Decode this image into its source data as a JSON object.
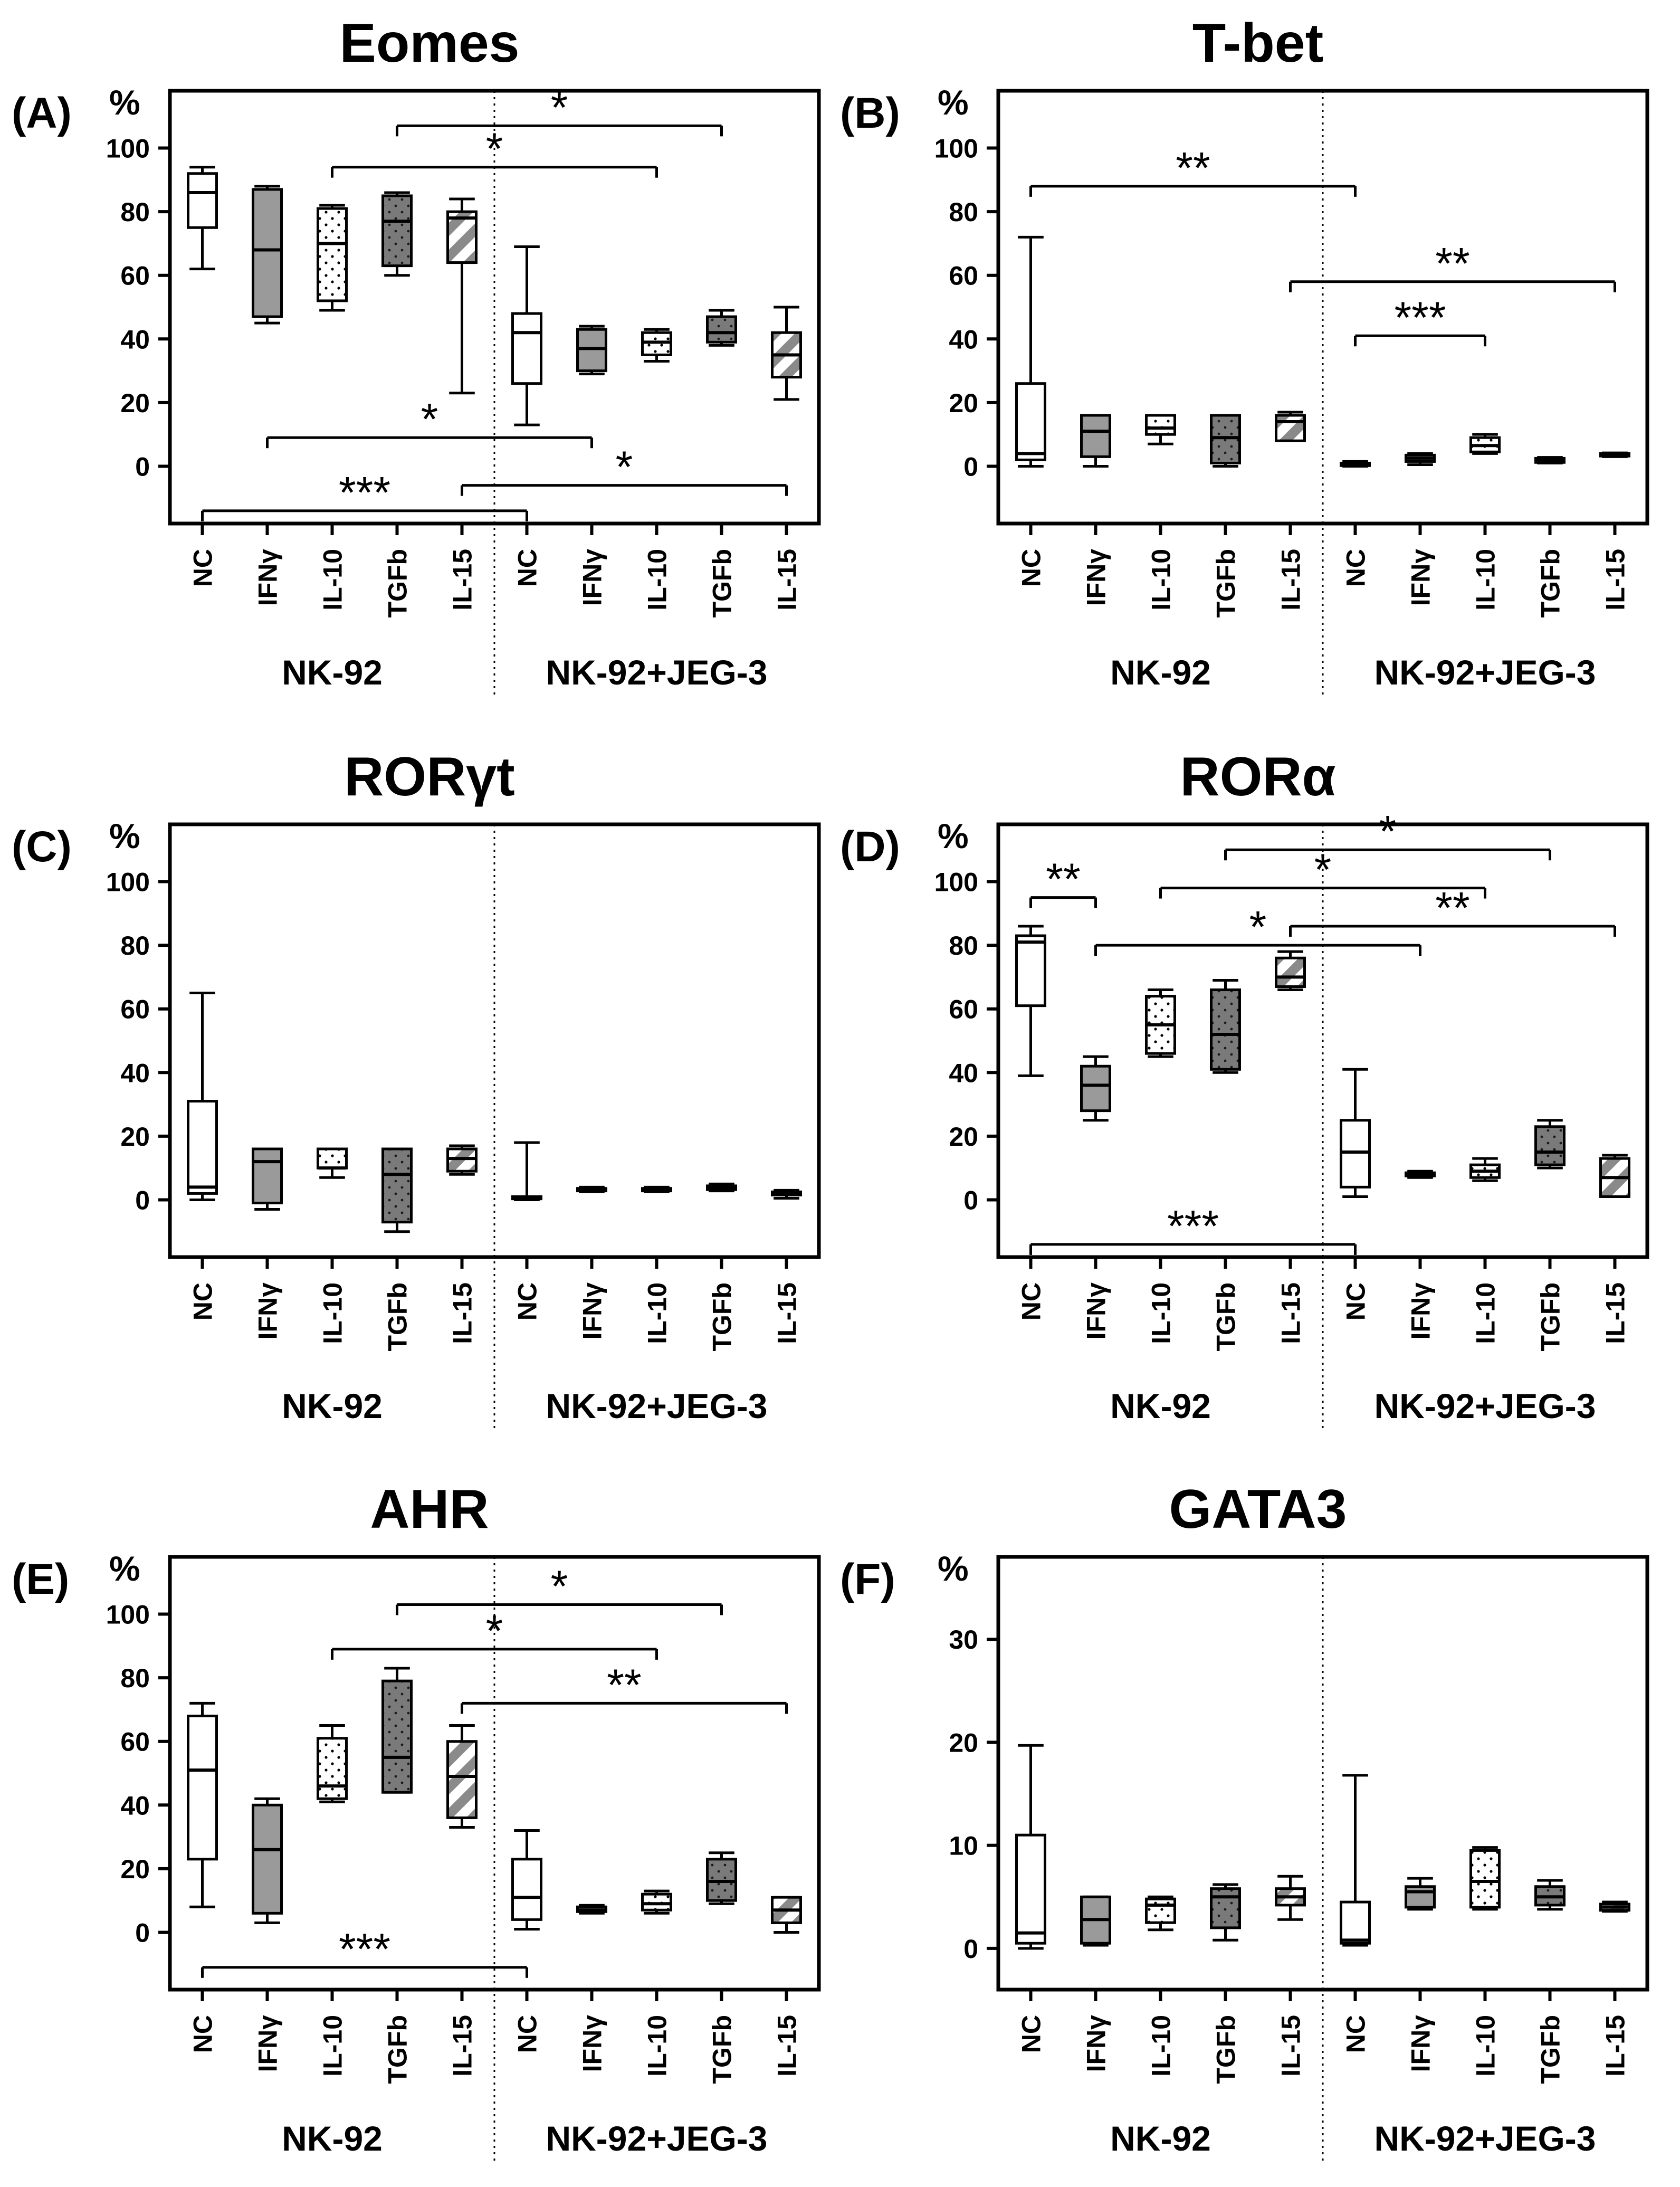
{
  "figure_letters": [
    "(A)",
    "(B)",
    "(C)",
    "(D)",
    "(E)",
    "(F)"
  ],
  "chart_data": [
    {
      "type": "box",
      "title": "Eomes",
      "ylabel": "%",
      "ylim": [
        -18,
        118
      ],
      "yticks": [
        0,
        20,
        40,
        60,
        80,
        100
      ],
      "categories": [
        "NC",
        "IFNγ",
        "IL-10",
        "TGFb",
        "IL-15",
        "NC",
        "IFNγ",
        "IL-10",
        "TGFb",
        "IL-15"
      ],
      "groups": [
        "NK-92",
        "NK-92+JEG-3"
      ],
      "series": [
        {
          "name": "NK-92 NC",
          "min": 62,
          "q1": 75,
          "median": 86,
          "q3": 92,
          "max": 94
        },
        {
          "name": "NK-92 IFNγ",
          "min": 45,
          "q1": 47,
          "median": 68,
          "q3": 87,
          "max": 88
        },
        {
          "name": "NK-92 IL-10",
          "min": 49,
          "q1": 52,
          "median": 70,
          "q3": 81,
          "max": 82
        },
        {
          "name": "NK-92 TGFb",
          "min": 60,
          "q1": 63,
          "median": 77,
          "q3": 85,
          "max": 86
        },
        {
          "name": "NK-92 IL-15",
          "min": 23,
          "q1": 64,
          "median": 78,
          "q3": 80,
          "max": 84
        },
        {
          "name": "NK-92+JEG-3 NC",
          "min": 13,
          "q1": 26,
          "median": 42,
          "q3": 48,
          "max": 69
        },
        {
          "name": "NK-92+JEG-3 IFNγ",
          "min": 29,
          "q1": 30,
          "median": 37,
          "q3": 43,
          "max": 44
        },
        {
          "name": "NK-92+JEG-3 IL-10",
          "min": 33,
          "q1": 35,
          "median": 39,
          "q3": 42,
          "max": 43
        },
        {
          "name": "NK-92+JEG-3 TGFb",
          "min": 38,
          "q1": 39,
          "median": 42,
          "q3": 47,
          "max": 49
        },
        {
          "name": "NK-92+JEG-3 IL-15",
          "min": 21,
          "q1": 28,
          "median": 35,
          "q3": 42,
          "max": 50
        }
      ],
      "comparisons": [
        {
          "from": 3,
          "to": 8,
          "y": 107,
          "label": "*"
        },
        {
          "from": 2,
          "to": 7,
          "y": 94,
          "label": "*"
        },
        {
          "from": 1,
          "to": 6,
          "y": 9,
          "label": "*"
        },
        {
          "from": 4,
          "to": 9,
          "y": -6,
          "label": "*"
        },
        {
          "from": 0,
          "to": 5,
          "y": -14,
          "label": "***"
        }
      ]
    },
    {
      "type": "box",
      "title": "T-bet",
      "ylabel": "%",
      "ylim": [
        -18,
        118
      ],
      "yticks": [
        0,
        20,
        40,
        60,
        80,
        100
      ],
      "categories": [
        "NC",
        "IFNγ",
        "IL-10",
        "TGFb",
        "IL-15",
        "NC",
        "IFNγ",
        "IL-10",
        "TGFb",
        "IL-15"
      ],
      "groups": [
        "NK-92",
        "NK-92+JEG-3"
      ],
      "series": [
        {
          "name": "NK-92 NC",
          "min": 0,
          "q1": 2,
          "median": 4,
          "q3": 26,
          "max": 72
        },
        {
          "name": "NK-92 IFNγ",
          "min": 0,
          "q1": 3,
          "median": 11,
          "q3": 16,
          "max": 16
        },
        {
          "name": "NK-92 IL-10",
          "min": 7,
          "q1": 10,
          "median": 12,
          "q3": 16,
          "max": 16
        },
        {
          "name": "NK-92 TGFb",
          "min": 0,
          "q1": 1,
          "median": 9,
          "q3": 16,
          "max": 16
        },
        {
          "name": "NK-92 IL-15",
          "min": 8,
          "q1": 8,
          "median": 14,
          "q3": 16,
          "max": 17
        },
        {
          "name": "NK-92+JEG-3 NC",
          "min": 0,
          "q1": 0.2,
          "median": 0.5,
          "q3": 1,
          "max": 1.5
        },
        {
          "name": "NK-92+JEG-3 IFNγ",
          "min": 0.5,
          "q1": 1.5,
          "median": 2.5,
          "q3": 3.5,
          "max": 4
        },
        {
          "name": "NK-92+JEG-3 IL-10",
          "min": 4,
          "q1": 4.5,
          "median": 6.5,
          "q3": 9,
          "max": 10
        },
        {
          "name": "NK-92+JEG-3 TGFb",
          "min": 1,
          "q1": 1.2,
          "median": 1.8,
          "q3": 2.5,
          "max": 2.8
        },
        {
          "name": "NK-92+JEG-3 IL-15",
          "min": 3,
          "q1": 3.2,
          "median": 3.6,
          "q3": 4,
          "max": 4.2
        }
      ],
      "comparisons": [
        {
          "from": 0,
          "to": 5,
          "y": 88,
          "label": "**"
        },
        {
          "from": 4,
          "to": 9,
          "y": 58,
          "label": "**"
        },
        {
          "from": 5,
          "to": 7,
          "y": 41,
          "label": "***"
        }
      ]
    },
    {
      "type": "box",
      "title": "RORγt",
      "ylabel": "%",
      "ylim": [
        -18,
        118
      ],
      "yticks": [
        0,
        20,
        40,
        60,
        80,
        100
      ],
      "categories": [
        "NC",
        "IFNγ",
        "IL-10",
        "TGFb",
        "IL-15",
        "NC",
        "IFNγ",
        "IL-10",
        "TGFb",
        "IL-15"
      ],
      "groups": [
        "NK-92",
        "NK-92+JEG-3"
      ],
      "series": [
        {
          "name": "NK-92 NC",
          "min": 0,
          "q1": 2,
          "median": 4,
          "q3": 31,
          "max": 65
        },
        {
          "name": "NK-92 IFNγ",
          "min": -3,
          "q1": -1,
          "median": 12,
          "q3": 16,
          "max": 16
        },
        {
          "name": "NK-92 IL-10",
          "min": 7,
          "q1": 10,
          "median": 10,
          "q3": 16,
          "max": 16
        },
        {
          "name": "NK-92 TGFb",
          "min": -10,
          "q1": -7,
          "median": 8,
          "q3": 16,
          "max": 16
        },
        {
          "name": "NK-92 IL-15",
          "min": 8,
          "q1": 9,
          "median": 13,
          "q3": 16,
          "max": 17
        },
        {
          "name": "NK-92+JEG-3 NC",
          "min": 0,
          "q1": 0.3,
          "median": 0.6,
          "q3": 1,
          "max": 18
        },
        {
          "name": "NK-92+JEG-3 IFNγ",
          "min": 2.5,
          "q1": 2.8,
          "median": 3.2,
          "q3": 3.6,
          "max": 4
        },
        {
          "name": "NK-92+JEG-3 IL-10",
          "min": 2.5,
          "q1": 2.8,
          "median": 3.2,
          "q3": 3.6,
          "max": 4
        },
        {
          "name": "NK-92+JEG-3 TGFb",
          "min": 2.8,
          "q1": 3.2,
          "median": 3.8,
          "q3": 4.4,
          "max": 5
        },
        {
          "name": "NK-92+JEG-3 IL-15",
          "min": 0.5,
          "q1": 1.5,
          "median": 2,
          "q3": 2.5,
          "max": 3
        }
      ],
      "comparisons": []
    },
    {
      "type": "box",
      "title": "RORα",
      "ylabel": "%",
      "ylim": [
        -18,
        118
      ],
      "yticks": [
        0,
        20,
        40,
        60,
        80,
        100
      ],
      "categories": [
        "NC",
        "IFNγ",
        "IL-10",
        "TGFb",
        "IL-15",
        "NC",
        "IFNγ",
        "IL-10",
        "TGFb",
        "IL-15"
      ],
      "groups": [
        "NK-92",
        "NK-92+JEG-3"
      ],
      "series": [
        {
          "name": "NK-92 NC",
          "min": 39,
          "q1": 61,
          "median": 81,
          "q3": 83,
          "max": 86
        },
        {
          "name": "NK-92 IFNγ",
          "min": 25,
          "q1": 28,
          "median": 36,
          "q3": 42,
          "max": 45
        },
        {
          "name": "NK-92 IL-10",
          "min": 45,
          "q1": 46,
          "median": 55,
          "q3": 64,
          "max": 66
        },
        {
          "name": "NK-92 TGFb",
          "min": 40,
          "q1": 41,
          "median": 52,
          "q3": 66,
          "max": 69
        },
        {
          "name": "NK-92 IL-15",
          "min": 66,
          "q1": 67,
          "median": 70,
          "q3": 76,
          "max": 78
        },
        {
          "name": "NK-92+JEG-3 NC",
          "min": 1,
          "q1": 4,
          "median": 15,
          "q3": 25,
          "max": 41
        },
        {
          "name": "NK-92+JEG-3 IFNγ",
          "min": 7,
          "q1": 7.5,
          "median": 8,
          "q3": 8.5,
          "max": 9
        },
        {
          "name": "NK-92+JEG-3 IL-10",
          "min": 6,
          "q1": 7,
          "median": 9,
          "q3": 11,
          "max": 13
        },
        {
          "name": "NK-92+JEG-3 TGFb",
          "min": 10,
          "q1": 11,
          "median": 15,
          "q3": 23,
          "max": 25
        },
        {
          "name": "NK-92+JEG-3 IL-15",
          "min": 1,
          "q1": 1,
          "median": 7,
          "q3": 13,
          "max": 14
        }
      ],
      "comparisons": [
        {
          "from": 0,
          "to": 1,
          "y": 95,
          "label": "**"
        },
        {
          "from": 3,
          "to": 8,
          "y": 110,
          "label": "*"
        },
        {
          "from": 2,
          "to": 7,
          "y": 98,
          "label": "*"
        },
        {
          "from": 4,
          "to": 9,
          "y": 86,
          "label": "**"
        },
        {
          "from": 1,
          "to": 6,
          "y": 80,
          "label": "*"
        },
        {
          "from": 0,
          "to": 5,
          "y": -14,
          "label": "***"
        }
      ]
    },
    {
      "type": "box",
      "title": "AHR",
      "ylabel": "%",
      "ylim": [
        -18,
        118
      ],
      "yticks": [
        0,
        20,
        40,
        60,
        80,
        100
      ],
      "categories": [
        "NC",
        "IFNγ",
        "IL-10",
        "TGFb",
        "IL-15",
        "NC",
        "IFNγ",
        "IL-10",
        "TGFb",
        "IL-15"
      ],
      "groups": [
        "NK-92",
        "NK-92+JEG-3"
      ],
      "series": [
        {
          "name": "NK-92 NC",
          "min": 8,
          "q1": 23,
          "median": 51,
          "q3": 68,
          "max": 72
        },
        {
          "name": "NK-92 IFNγ",
          "min": 3,
          "q1": 6,
          "median": 26,
          "q3": 40,
          "max": 42
        },
        {
          "name": "NK-92 IL-10",
          "min": 41,
          "q1": 42,
          "median": 46,
          "q3": 61,
          "max": 65
        },
        {
          "name": "NK-92 TGFb",
          "min": 44,
          "q1": 44,
          "median": 55,
          "q3": 79,
          "max": 83
        },
        {
          "name": "NK-92 IL-15",
          "min": 33,
          "q1": 36,
          "median": 49,
          "q3": 60,
          "max": 65
        },
        {
          "name": "NK-92+JEG-3 NC",
          "min": 1,
          "q1": 4,
          "median": 11,
          "q3": 23,
          "max": 32
        },
        {
          "name": "NK-92+JEG-3 IFNγ",
          "min": 6,
          "q1": 6.5,
          "median": 7,
          "q3": 8,
          "max": 8.5
        },
        {
          "name": "NK-92+JEG-3 IL-10",
          "min": 6,
          "q1": 7,
          "median": 9,
          "q3": 12,
          "max": 13
        },
        {
          "name": "NK-92+JEG-3 TGFb",
          "min": 9,
          "q1": 10,
          "median": 16,
          "q3": 23,
          "max": 25
        },
        {
          "name": "NK-92+JEG-3 IL-15",
          "min": 0,
          "q1": 3,
          "median": 7,
          "q3": 11,
          "max": 11
        }
      ],
      "comparisons": [
        {
          "from": 3,
          "to": 8,
          "y": 103,
          "label": "*"
        },
        {
          "from": 2,
          "to": 7,
          "y": 89,
          "label": "*"
        },
        {
          "from": 4,
          "to": 9,
          "y": 72,
          "label": "**"
        },
        {
          "from": 0,
          "to": 5,
          "y": -11,
          "label": "***"
        }
      ]
    },
    {
      "type": "box",
      "title": "GATA3",
      "ylabel": "%",
      "ylim": [
        -4,
        38
      ],
      "yticks": [
        0,
        10,
        20,
        30
      ],
      "categories": [
        "NC",
        "IFNγ",
        "IL-10",
        "TGFb",
        "IL-15",
        "NC",
        "IFNγ",
        "IL-10",
        "TGFb",
        "IL-15"
      ],
      "groups": [
        "NK-92",
        "NK-92+JEG-3"
      ],
      "series": [
        {
          "name": "NK-92 NC",
          "min": 0,
          "q1": 0.5,
          "median": 1.5,
          "q3": 11,
          "max": 19.7
        },
        {
          "name": "NK-92 IFNγ",
          "min": 0.3,
          "q1": 0.5,
          "median": 2.8,
          "q3": 5,
          "max": 5
        },
        {
          "name": "NK-92 IL-10",
          "min": 1.8,
          "q1": 2.5,
          "median": 4.2,
          "q3": 4.8,
          "max": 5
        },
        {
          "name": "NK-92 TGFb",
          "min": 0.8,
          "q1": 2,
          "median": 5,
          "q3": 5.8,
          "max": 6.2
        },
        {
          "name": "NK-92 IL-15",
          "min": 2.8,
          "q1": 4.2,
          "median": 5,
          "q3": 5.8,
          "max": 7
        },
        {
          "name": "NK-92+JEG-3 NC",
          "min": 0.3,
          "q1": 0.5,
          "median": 0.8,
          "q3": 4.5,
          "max": 16.8
        },
        {
          "name": "NK-92+JEG-3 IFNγ",
          "min": 3.8,
          "q1": 4,
          "median": 5.5,
          "q3": 6,
          "max": 6.8
        },
        {
          "name": "NK-92+JEG-3 IL-10",
          "min": 3.8,
          "q1": 4,
          "median": 6.5,
          "q3": 9.5,
          "max": 9.8
        },
        {
          "name": "NK-92+JEG-3 TGFb",
          "min": 3.8,
          "q1": 4.2,
          "median": 5,
          "q3": 6,
          "max": 6.6
        },
        {
          "name": "NK-92+JEG-3 IL-15",
          "min": 3.6,
          "q1": 3.7,
          "median": 4,
          "q3": 4.3,
          "max": 4.5
        }
      ],
      "comparisons": []
    }
  ]
}
